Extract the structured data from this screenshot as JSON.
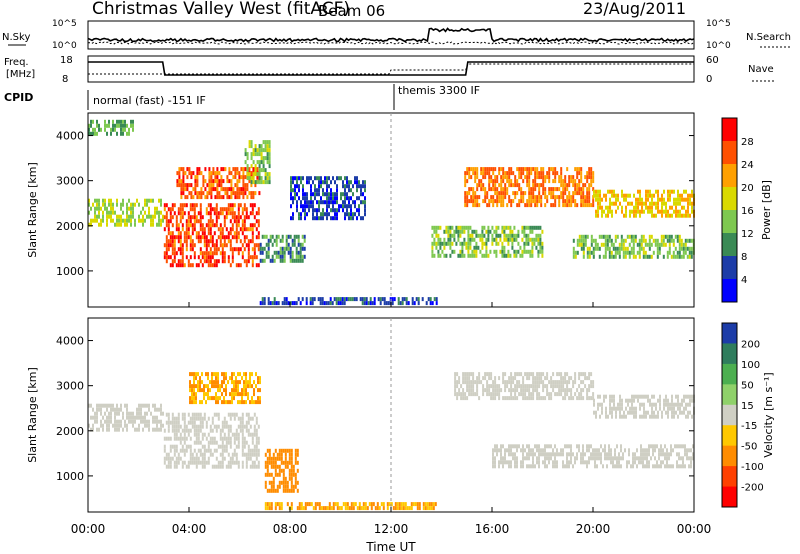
{
  "header": {
    "title": "Christmas Valley West (fitACF)",
    "beam": "Beam 06",
    "date": "23/Aug/2011"
  },
  "strips": {
    "nsky_label": "N.Sky",
    "nsearch_label": "N.Search",
    "count_ticks": [
      "10^5",
      "10^0"
    ],
    "freq_label_line1": "Freq.",
    "freq_label_line2": "[MHz]",
    "freq_ticks": [
      "18",
      "8"
    ],
    "nave_label": "Nave",
    "nave_ticks": [
      "60",
      "0"
    ],
    "cpid_label": "CPID",
    "cpid_modes": [
      "normal (fast) -151 IF",
      "themis 3300 IF"
    ]
  },
  "chart_data": [
    {
      "type": "heatmap",
      "name": "power",
      "ylabel": "Slant Range [km]",
      "yticks": [
        1000,
        2000,
        3000,
        4000
      ],
      "ylim": [
        200,
        4500
      ],
      "xlim": [
        0,
        24
      ],
      "colorbar_label": "Power [dB]",
      "colorbar_ticks": [
        "28",
        "24",
        "20",
        "16",
        "12",
        "8",
        "4"
      ],
      "colorbar_colors": [
        "#ff0000",
        "#ff5000",
        "#ffa000",
        "#d9d900",
        "#7ec850",
        "#3a8a55",
        "#1c3ca8",
        "#0000ff"
      ],
      "bands": [
        {
          "t": [
            0.0,
            3.0
          ],
          "range": [
            2000,
            2600
          ],
          "level": 16
        },
        {
          "t": [
            0.0,
            1.8
          ],
          "range": [
            4050,
            4350
          ],
          "level": 12
        },
        {
          "t": [
            3.0,
            6.8
          ],
          "range": [
            1150,
            2500
          ],
          "level": 27
        },
        {
          "t": [
            3.5,
            6.8
          ],
          "range": [
            2600,
            3300
          ],
          "level": 26
        },
        {
          "t": [
            6.2,
            7.2
          ],
          "range": [
            3000,
            3900
          ],
          "level": 14
        },
        {
          "t": [
            6.8,
            8.6
          ],
          "range": [
            1200,
            1800
          ],
          "level": 10
        },
        {
          "t": [
            8.0,
            11.0
          ],
          "range": [
            2200,
            3100
          ],
          "level": 6
        },
        {
          "t": [
            6.8,
            13.8
          ],
          "range": [
            250,
            420
          ],
          "level": 6
        },
        {
          "t": [
            14.9,
            20.0
          ],
          "range": [
            2500,
            3300
          ],
          "level": 24
        },
        {
          "t": [
            13.6,
            18.0
          ],
          "range": [
            1300,
            2000
          ],
          "level": 14
        },
        {
          "t": [
            20.0,
            24.0
          ],
          "range": [
            2200,
            2800
          ],
          "level": 20
        },
        {
          "t": [
            19.2,
            24.0
          ],
          "range": [
            1300,
            1800
          ],
          "level": 14
        }
      ]
    },
    {
      "type": "heatmap",
      "name": "velocity",
      "ylabel": "Slant Range [km]",
      "yticks": [
        1000,
        2000,
        3000,
        4000
      ],
      "ylim": [
        200,
        4500
      ],
      "xlim": [
        0,
        24
      ],
      "xlabel": "Time UT",
      "xticks": [
        "00:00",
        "04:00",
        "08:00",
        "12:00",
        "16:00",
        "20:00",
        "00:00"
      ],
      "colorbar_label": "Velocity [m s⁻¹]",
      "colorbar_ticks": [
        "200",
        "100",
        "50",
        "15",
        "-15",
        "-50",
        "-100",
        "-200"
      ],
      "colorbar_colors": [
        "#1c3ca8",
        "#2f7d5d",
        "#4caf50",
        "#8fd16a",
        "#cfcfc4",
        "#ffc800",
        "#ff8c00",
        "#ff4000",
        "#ff0000"
      ],
      "bands": [
        {
          "t": [
            0.0,
            3.0
          ],
          "range": [
            2000,
            2600
          ],
          "level": 0
        },
        {
          "t": [
            3.0,
            6.8
          ],
          "range": [
            1200,
            2400
          ],
          "level": 0
        },
        {
          "t": [
            4.0,
            6.8
          ],
          "range": [
            2600,
            3300
          ],
          "level": -30
        },
        {
          "t": [
            7.0,
            8.3
          ],
          "range": [
            700,
            1600
          ],
          "level": -60
        },
        {
          "t": [
            14.5,
            20.0
          ],
          "range": [
            2700,
            3300
          ],
          "level": 0
        },
        {
          "t": [
            16.0,
            24.0
          ],
          "range": [
            1200,
            1700
          ],
          "level": 0
        },
        {
          "t": [
            20.0,
            24.0
          ],
          "range": [
            2300,
            2800
          ],
          "level": 0
        },
        {
          "t": [
            7.0,
            13.8
          ],
          "range": [
            250,
            420
          ],
          "level": -30
        }
      ]
    }
  ]
}
